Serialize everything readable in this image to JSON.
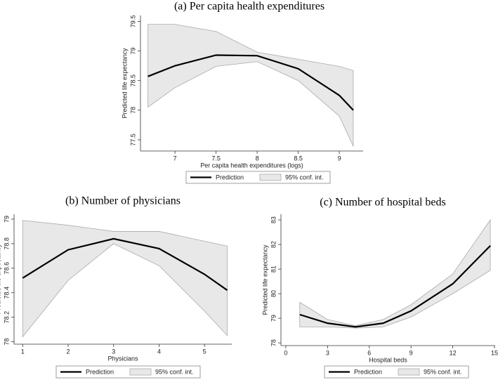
{
  "chart_data": [
    {
      "type": "line",
      "title": "(a) Per capita health expenditures",
      "x_label": "Per capita health expenditures (logs)",
      "y_label": "Predicted life expectancy",
      "x": [
        6.67,
        7,
        7.5,
        8,
        8.5,
        9,
        9.17
      ],
      "series": [
        {
          "name": "Prediction",
          "color": "#000000",
          "values": [
            78.57,
            78.75,
            78.93,
            78.92,
            78.7,
            78.25,
            78.0
          ]
        },
        {
          "name": "95% conf. int.",
          "color": "#e8e8e8",
          "upper": [
            79.45,
            79.45,
            79.33,
            78.98,
            78.86,
            78.74,
            78.67
          ],
          "lower": [
            78.05,
            78.38,
            78.74,
            78.82,
            78.5,
            77.9,
            77.39
          ]
        }
      ],
      "xlim": [
        6.58,
        9.29
      ],
      "xticks": [
        7,
        7.5,
        8,
        8.5,
        9
      ],
      "ylim": [
        77.31,
        79.6
      ],
      "yticks": [
        77.5,
        78,
        78.5,
        79,
        79.5
      ]
    },
    {
      "type": "line",
      "title": "(b) Number of physicians",
      "x_label": "Physicians",
      "y_label": "Predicted life expectancy",
      "x": [
        1,
        2,
        3,
        4,
        5,
        5.5
      ],
      "series": [
        {
          "name": "Prediction",
          "color": "#000000",
          "values": [
            78.52,
            78.75,
            78.84,
            78.76,
            78.55,
            78.42
          ]
        },
        {
          "name": "95% conf. int.",
          "color": "#e8e8e8",
          "upper": [
            78.99,
            78.95,
            78.9,
            78.9,
            78.82,
            78.78
          ],
          "lower": [
            78.04,
            78.5,
            78.8,
            78.62,
            78.25,
            78.05
          ]
        }
      ],
      "xlim": [
        0.81,
        5.6
      ],
      "xticks": [
        1,
        2,
        3,
        4,
        5
      ],
      "ylim": [
        77.98,
        79.04
      ],
      "yticks": [
        78,
        78.2,
        78.4,
        78.6,
        78.8,
        79
      ]
    },
    {
      "type": "line",
      "title": "(c) Number of hospital beds",
      "x_label": "Hospital beds",
      "y_label": "Predicted life expectancy",
      "x": [
        1,
        3,
        5,
        7,
        9,
        12,
        14.7
      ],
      "series": [
        {
          "name": "Prediction",
          "color": "#000000",
          "values": [
            79.15,
            78.8,
            78.65,
            78.8,
            79.3,
            80.4,
            81.95
          ]
        },
        {
          "name": "95% conf. int.",
          "color": "#e8e8e8",
          "upper": [
            79.65,
            78.95,
            78.7,
            78.95,
            79.55,
            80.8,
            83.0
          ],
          "lower": [
            78.65,
            78.65,
            78.6,
            78.65,
            79.05,
            80.0,
            80.95
          ]
        }
      ],
      "xlim": [
        -0.35,
        15.05
      ],
      "xticks": [
        0,
        3,
        6,
        9,
        12,
        15
      ],
      "ylim": [
        77.89,
        83.23
      ],
      "yticks": [
        78,
        79,
        80,
        81,
        82,
        83
      ]
    }
  ]
}
